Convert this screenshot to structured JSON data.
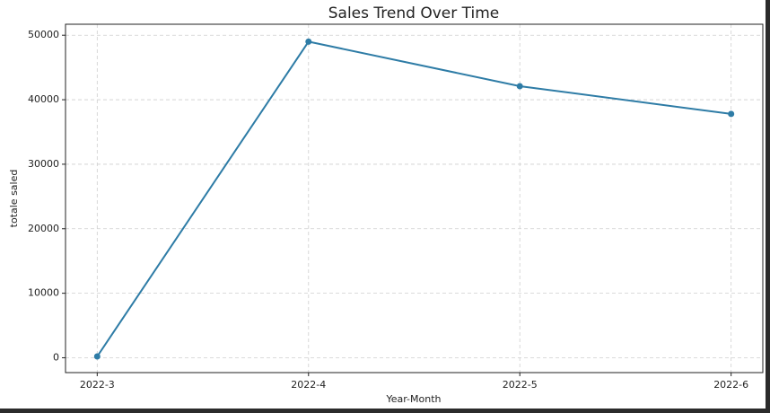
{
  "chart_data": {
    "type": "line",
    "title": "Sales Trend Over Time",
    "x_label": "Year-Month",
    "y_label": "totale saled",
    "categories": [
      "2022-3",
      "2022-4",
      "2022-5",
      "2022-6"
    ],
    "values": [
      200,
      49000,
      42100,
      37800
    ],
    "color": "#2e7ca6",
    "ylim": [
      -2300,
      51700
    ],
    "yticks": [
      0,
      10000,
      20000,
      30000,
      40000,
      50000
    ],
    "grid": true
  }
}
